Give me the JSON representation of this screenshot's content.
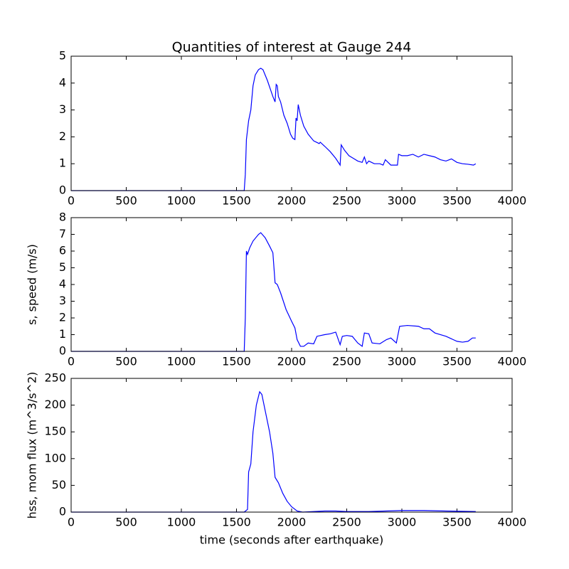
{
  "chart_data": [
    {
      "type": "line",
      "title": "Quantities of interest at Gauge 244",
      "x": [
        0,
        1560,
        1570,
        1580,
        1590,
        1610,
        1630,
        1650,
        1670,
        1700,
        1720,
        1740,
        1780,
        1830,
        1850,
        1860,
        1870,
        1880,
        1900,
        1930,
        1960,
        1990,
        2010,
        2030,
        2040,
        2050,
        2060,
        2080,
        2110,
        2150,
        2200,
        2250,
        2260,
        2300,
        2350,
        2400,
        2440,
        2450,
        2480,
        2520,
        2560,
        2600,
        2640,
        2660,
        2680,
        2700,
        2750,
        2800,
        2830,
        2850,
        2900,
        2960,
        2970,
        3000,
        3050,
        3100,
        3150,
        3200,
        3250,
        3300,
        3350,
        3400,
        3450,
        3500,
        3550,
        3600,
        3650,
        3670
      ],
      "series": [
        {
          "color": "#0000ff",
          "values": [
            0,
            0,
            0,
            0.6,
            1.9,
            2.6,
            3.0,
            3.9,
            4.3,
            4.5,
            4.55,
            4.5,
            4.1,
            3.5,
            3.3,
            3.95,
            3.9,
            3.5,
            3.3,
            2.8,
            2.5,
            2.1,
            1.95,
            1.9,
            2.7,
            2.6,
            3.2,
            2.8,
            2.4,
            2.1,
            1.85,
            1.75,
            1.8,
            1.65,
            1.45,
            1.2,
            0.95,
            1.7,
            1.5,
            1.3,
            1.2,
            1.1,
            1.05,
            1.25,
            1.0,
            1.1,
            1.0,
            1.0,
            0.95,
            1.15,
            0.95,
            0.95,
            1.35,
            1.3,
            1.3,
            1.35,
            1.25,
            1.35,
            1.3,
            1.25,
            1.15,
            1.1,
            1.18,
            1.05,
            1.0,
            0.98,
            0.95,
            1.0
          ]
        }
      ],
      "xlim": [
        0,
        4000
      ],
      "xticks": [
        0,
        500,
        1000,
        1500,
        2000,
        2500,
        3000,
        3500,
        4000
      ],
      "ylim": [
        0,
        5
      ],
      "yticks": [
        0,
        1,
        2,
        3,
        4,
        5
      ]
    },
    {
      "type": "line",
      "ylabel": "s, speed (m/s)",
      "x": [
        0,
        1560,
        1570,
        1580,
        1590,
        1600,
        1620,
        1650,
        1700,
        1720,
        1760,
        1800,
        1830,
        1850,
        1870,
        1900,
        1950,
        2000,
        2030,
        2050,
        2080,
        2110,
        2150,
        2200,
        2230,
        2300,
        2350,
        2400,
        2440,
        2460,
        2500,
        2550,
        2600,
        2640,
        2660,
        2700,
        2730,
        2800,
        2860,
        2900,
        2950,
        2980,
        3050,
        3150,
        3200,
        3250,
        3300,
        3400,
        3500,
        3550,
        3600,
        3640,
        3670
      ],
      "series": [
        {
          "color": "#0000ff",
          "values": [
            0,
            0,
            0,
            2.0,
            6.0,
            5.8,
            6.2,
            6.6,
            7.0,
            7.1,
            6.8,
            6.3,
            5.9,
            4.1,
            4.0,
            3.5,
            2.5,
            1.8,
            1.4,
            0.7,
            0.3,
            0.3,
            0.5,
            0.45,
            0.9,
            1.0,
            1.05,
            1.15,
            0.4,
            0.9,
            0.95,
            0.9,
            0.5,
            0.3,
            1.1,
            1.05,
            0.5,
            0.45,
            0.7,
            0.8,
            0.5,
            1.5,
            1.55,
            1.5,
            1.35,
            1.35,
            1.1,
            0.9,
            0.6,
            0.55,
            0.6,
            0.8,
            0.8
          ]
        }
      ],
      "xlim": [
        0,
        4000
      ],
      "xticks": [
        0,
        500,
        1000,
        1500,
        2000,
        2500,
        3000,
        3500,
        4000
      ],
      "ylim": [
        0,
        8
      ],
      "yticks": [
        0,
        1,
        2,
        3,
        4,
        5,
        6,
        7,
        8
      ]
    },
    {
      "type": "line",
      "xlabel": "time (seconds after earthquake)",
      "ylabel": "hss, mom flux (m^3/s^2)",
      "x": [
        0,
        1570,
        1600,
        1610,
        1630,
        1650,
        1680,
        1710,
        1730,
        1760,
        1800,
        1830,
        1850,
        1880,
        1920,
        1960,
        2000,
        2050,
        2100,
        2200,
        2300,
        2400,
        2500,
        2700,
        3000,
        3200,
        3400,
        3670
      ],
      "series": [
        {
          "color": "#0000ff",
          "values": [
            0,
            0,
            5,
            75,
            90,
            150,
            200,
            225,
            220,
            190,
            150,
            110,
            65,
            55,
            35,
            20,
            10,
            2,
            0,
            1,
            2,
            2,
            1,
            1,
            3,
            3,
            2,
            1
          ]
        }
      ],
      "xlim": [
        0,
        4000
      ],
      "xticks": [
        0,
        500,
        1000,
        1500,
        2000,
        2500,
        3000,
        3500,
        4000
      ],
      "ylim": [
        0,
        250
      ],
      "yticks": [
        0,
        50,
        100,
        150,
        200,
        250
      ]
    }
  ]
}
